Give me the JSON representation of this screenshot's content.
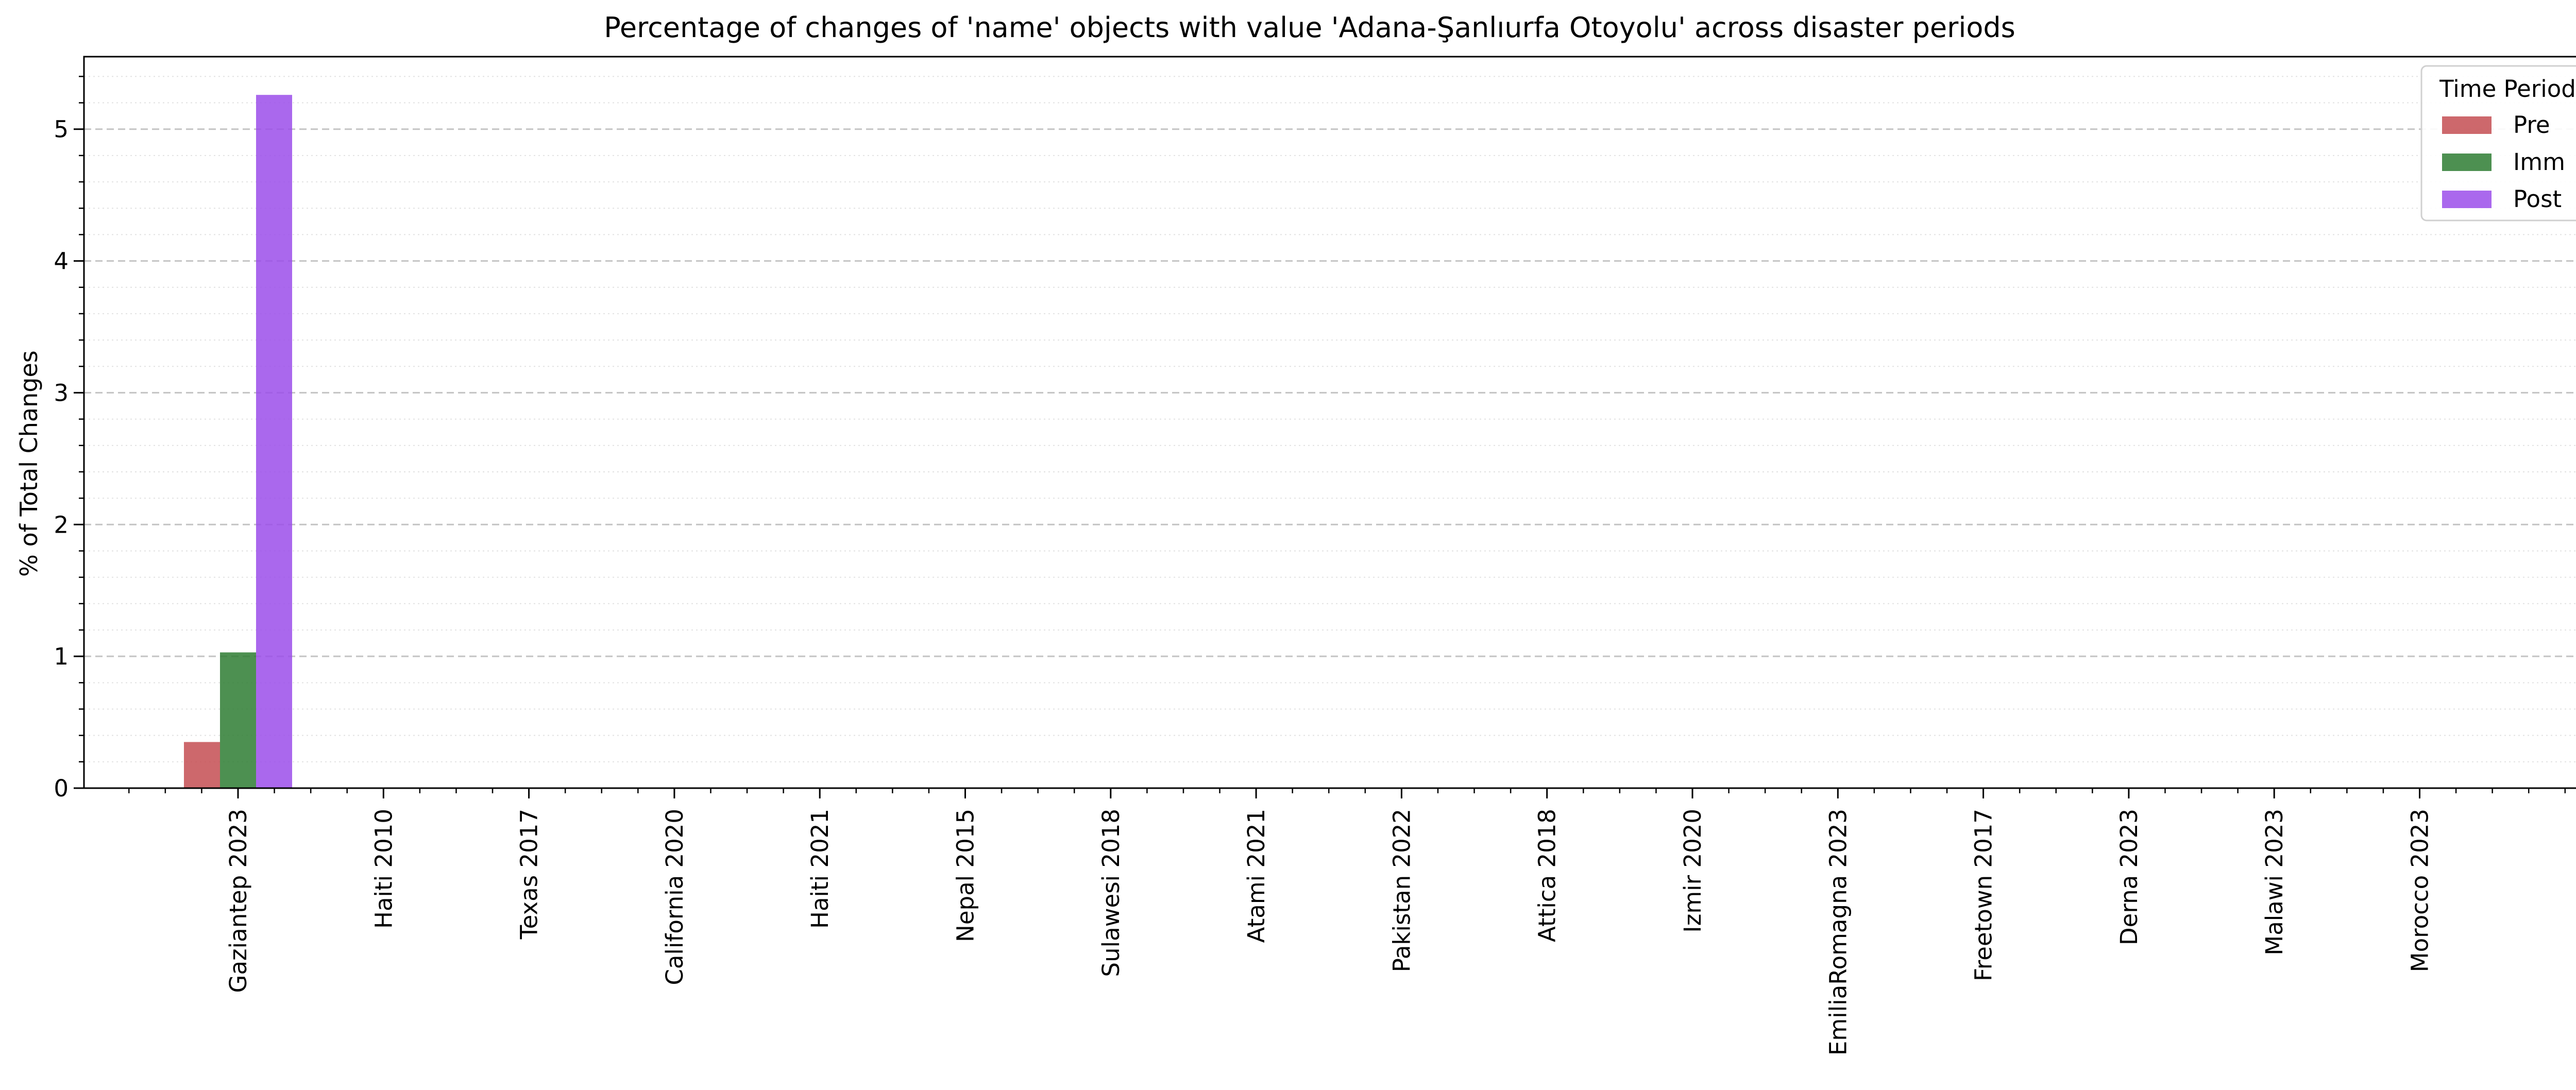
{
  "chart_data": {
    "type": "bar",
    "title": "Percentage of changes of 'name' objects with value 'Adana-Şanlıurfa Otoyolu' across disaster periods",
    "xlabel": "",
    "ylabel": "% of Total Changes",
    "ylim": [
      0,
      5.55
    ],
    "yticks": [
      0,
      1,
      2,
      3,
      4,
      5
    ],
    "grid": "horizontal dashed major, dotted minor",
    "legend": {
      "title": "Time Period",
      "placement": "top-right"
    },
    "categories": [
      "Gaziantep 2023",
      "Haiti 2010",
      "Texas 2017",
      "California 2020",
      "Haiti 2021",
      "Nepal 2015",
      "Sulawesi 2018",
      "Atami 2021",
      "Pakistan 2022",
      "Attica 2018",
      "Izmir 2020",
      "EmiliaRomagna 2023",
      "Freetown 2017",
      "Derna 2023",
      "Malawi 2023",
      "Morocco 2023"
    ],
    "series": [
      {
        "name": "Pre",
        "color": "#c44e52",
        "values": [
          0.35,
          0,
          0,
          0,
          0,
          0,
          0,
          0,
          0,
          0,
          0,
          0,
          0,
          0,
          0,
          0
        ]
      },
      {
        "name": "Imm",
        "color": "#2e7d32",
        "values": [
          1.03,
          0,
          0,
          0,
          0,
          0,
          0,
          0,
          0,
          0,
          0,
          0,
          0,
          0,
          0,
          0
        ]
      },
      {
        "name": "Post",
        "color": "#9b4dea",
        "values": [
          5.26,
          0,
          0,
          0,
          0,
          0,
          0,
          0,
          0,
          0,
          0,
          0,
          0,
          0,
          0,
          0
        ]
      }
    ]
  }
}
